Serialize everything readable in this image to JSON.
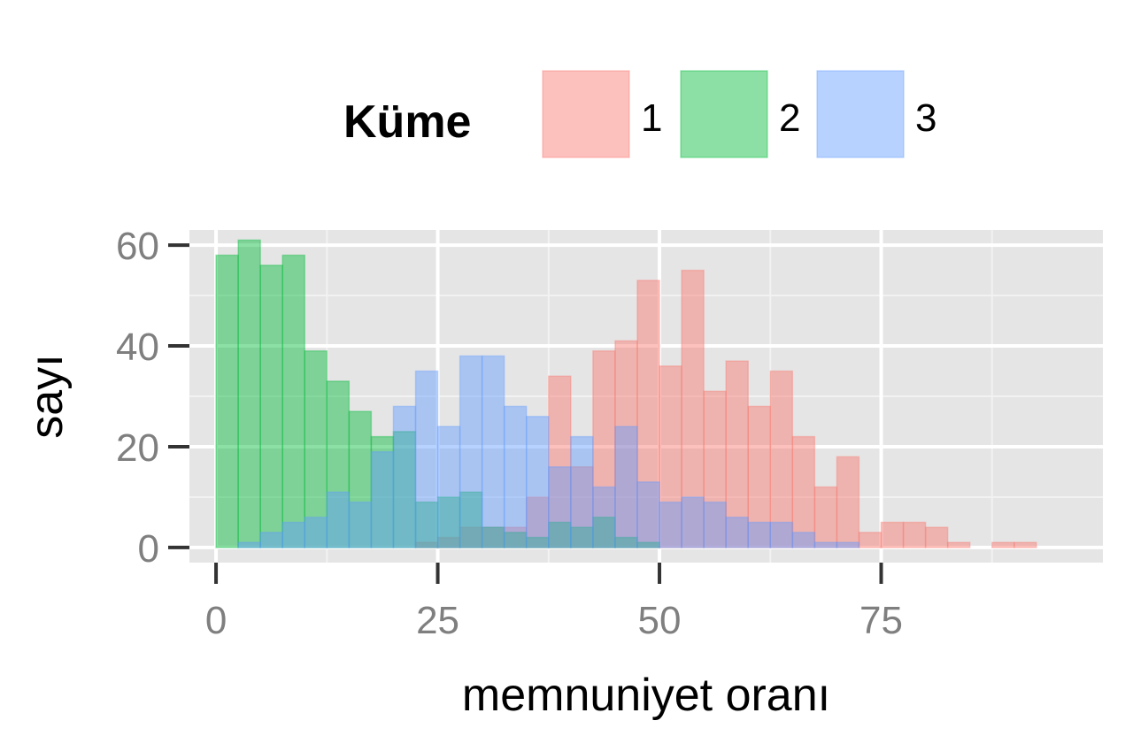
{
  "chart_data": {
    "type": "bar",
    "subtype": "overlaid-histogram",
    "title": "",
    "xlabel": "memnuniyet oranı",
    "ylabel": "sayı",
    "xlim": [
      -3,
      100
    ],
    "ylim": [
      -3,
      63
    ],
    "x_ticks": [
      0,
      25,
      50,
      75
    ],
    "y_ticks": [
      0,
      20,
      40,
      60
    ],
    "grid": true,
    "bin_width": 2.5,
    "legend": {
      "title": "Küme",
      "position": "top",
      "entries": [
        "1",
        "2",
        "3"
      ]
    },
    "series": [
      {
        "name": "1",
        "color": "#f8766d",
        "bins": [
          {
            "x0": 22.5,
            "count": 1
          },
          {
            "x0": 25,
            "count": 2
          },
          {
            "x0": 27.5,
            "count": 4
          },
          {
            "x0": 30,
            "count": 4
          },
          {
            "x0": 32.5,
            "count": 4
          },
          {
            "x0": 35,
            "count": 10
          },
          {
            "x0": 37.5,
            "count": 34
          },
          {
            "x0": 40,
            "count": 16
          },
          {
            "x0": 42.5,
            "count": 39
          },
          {
            "x0": 45,
            "count": 41
          },
          {
            "x0": 47.5,
            "count": 53
          },
          {
            "x0": 50,
            "count": 36
          },
          {
            "x0": 52.5,
            "count": 55
          },
          {
            "x0": 55,
            "count": 31
          },
          {
            "x0": 57.5,
            "count": 37
          },
          {
            "x0": 60,
            "count": 28
          },
          {
            "x0": 62.5,
            "count": 35
          },
          {
            "x0": 65,
            "count": 22
          },
          {
            "x0": 67.5,
            "count": 12
          },
          {
            "x0": 70,
            "count": 18
          },
          {
            "x0": 72.5,
            "count": 3
          },
          {
            "x0": 75,
            "count": 5
          },
          {
            "x0": 77.5,
            "count": 5
          },
          {
            "x0": 80,
            "count": 4
          },
          {
            "x0": 82.5,
            "count": 1
          },
          {
            "x0": 87.5,
            "count": 1
          },
          {
            "x0": 90,
            "count": 1
          }
        ]
      },
      {
        "name": "2",
        "color": "#00ba38",
        "bins": [
          {
            "x0": 0,
            "count": 58
          },
          {
            "x0": 2.5,
            "count": 61
          },
          {
            "x0": 5,
            "count": 56
          },
          {
            "x0": 7.5,
            "count": 58
          },
          {
            "x0": 10,
            "count": 39
          },
          {
            "x0": 12.5,
            "count": 33
          },
          {
            "x0": 15,
            "count": 27
          },
          {
            "x0": 17.5,
            "count": 22
          },
          {
            "x0": 20,
            "count": 23
          },
          {
            "x0": 22.5,
            "count": 9
          },
          {
            "x0": 25,
            "count": 10
          },
          {
            "x0": 27.5,
            "count": 11
          },
          {
            "x0": 30,
            "count": 4
          },
          {
            "x0": 32.5,
            "count": 3
          },
          {
            "x0": 35,
            "count": 2
          },
          {
            "x0": 37.5,
            "count": 5
          },
          {
            "x0": 40,
            "count": 4
          },
          {
            "x0": 42.5,
            "count": 6
          },
          {
            "x0": 45,
            "count": 2
          },
          {
            "x0": 47.5,
            "count": 1
          }
        ]
      },
      {
        "name": "3",
        "color": "#619cff",
        "bins": [
          {
            "x0": 2.5,
            "count": 1
          },
          {
            "x0": 5,
            "count": 3
          },
          {
            "x0": 7.5,
            "count": 5
          },
          {
            "x0": 10,
            "count": 6
          },
          {
            "x0": 12.5,
            "count": 11
          },
          {
            "x0": 15,
            "count": 9
          },
          {
            "x0": 17.5,
            "count": 19
          },
          {
            "x0": 20,
            "count": 28
          },
          {
            "x0": 22.5,
            "count": 35
          },
          {
            "x0": 25,
            "count": 24
          },
          {
            "x0": 27.5,
            "count": 38
          },
          {
            "x0": 30,
            "count": 38
          },
          {
            "x0": 32.5,
            "count": 28
          },
          {
            "x0": 35,
            "count": 26
          },
          {
            "x0": 37.5,
            "count": 16
          },
          {
            "x0": 40,
            "count": 22
          },
          {
            "x0": 42.5,
            "count": 12
          },
          {
            "x0": 45,
            "count": 24
          },
          {
            "x0": 47.5,
            "count": 13
          },
          {
            "x0": 50,
            "count": 9
          },
          {
            "x0": 52.5,
            "count": 10
          },
          {
            "x0": 55,
            "count": 9
          },
          {
            "x0": 57.5,
            "count": 6
          },
          {
            "x0": 60,
            "count": 5
          },
          {
            "x0": 62.5,
            "count": 5
          },
          {
            "x0": 65,
            "count": 3
          },
          {
            "x0": 67.5,
            "count": 1
          },
          {
            "x0": 70,
            "count": 1
          }
        ]
      }
    ]
  }
}
